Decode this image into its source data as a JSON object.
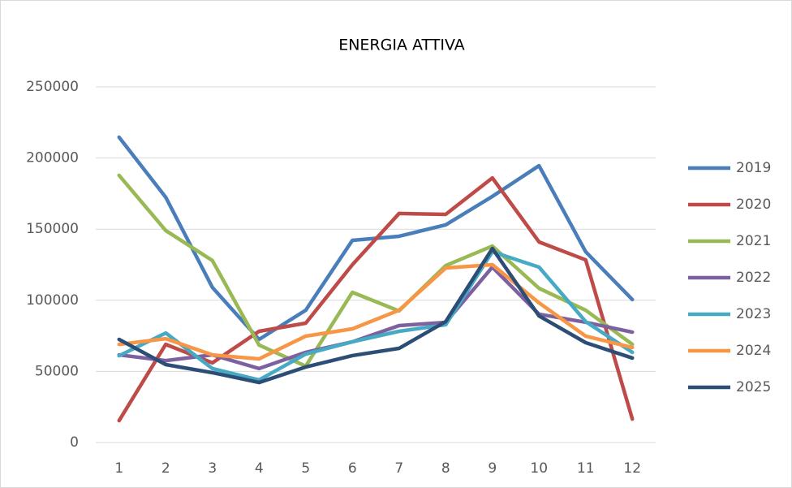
{
  "chart_data": {
    "type": "line",
    "title": "ENERGIA ATTIVA",
    "categories": [
      "1",
      "2",
      "3",
      "4",
      "5",
      "6",
      "7",
      "8",
      "9",
      "10",
      "11",
      "12"
    ],
    "series": [
      {
        "name": "2019",
        "color": "#4a7ebb",
        "values": [
          214600,
          172400,
          109000,
          72500,
          93000,
          142100,
          145000,
          153000,
          173000,
          194600,
          134100,
          100500
        ]
      },
      {
        "name": "2020",
        "color": "#be4b48",
        "values": [
          15400,
          69000,
          56000,
          78200,
          83900,
          125000,
          161000,
          160400,
          186000,
          141000,
          128400,
          16500
        ]
      },
      {
        "name": "2021",
        "color": "#98b954",
        "values": [
          187800,
          149000,
          127900,
          68500,
          53700,
          105600,
          92500,
          124400,
          138100,
          108400,
          93000,
          69000
        ]
      },
      {
        "name": "2022",
        "color": "#7d60a0",
        "values": [
          61600,
          57600,
          61600,
          52000,
          63400,
          70800,
          82200,
          84500,
          123300,
          90200,
          84500,
          77600
        ]
      },
      {
        "name": "2023",
        "color": "#46aac5",
        "values": [
          61000,
          77000,
          52000,
          44000,
          62200,
          70800,
          78200,
          82800,
          134100,
          123300,
          85000,
          63400
        ]
      },
      {
        "name": "2024",
        "color": "#f79646",
        "values": [
          69000,
          73000,
          61600,
          58800,
          74800,
          79900,
          93000,
          122700,
          125000,
          98200,
          74800,
          66800
        ]
      },
      {
        "name": "2025",
        "color": "#2c4d75",
        "values": [
          72500,
          54800,
          49100,
          42200,
          53100,
          61100,
          66200,
          85000,
          136400,
          89000,
          70200,
          59400
        ]
      }
    ],
    "ylim": [
      0,
      250000
    ],
    "yticks": [
      0,
      50000,
      100000,
      150000,
      200000,
      250000
    ],
    "grid": true,
    "legend": "right"
  }
}
